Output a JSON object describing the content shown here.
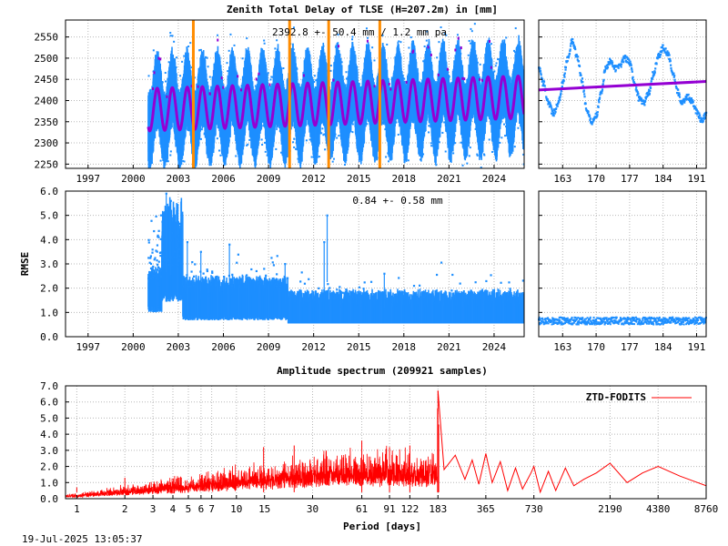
{
  "title": "Zenith Total Delay of TLSE (H=207.2m) in [mm]",
  "timestamp": "19-Jul-2025 13:05:37",
  "colors": {
    "ztd": "#1e8fff",
    "model": "#9400d3",
    "events": "#ff8c00",
    "spectrum": "#ff0000"
  },
  "chart_data": [
    {
      "type": "scatter",
      "panel": "ztd-full",
      "annotation": "2392.8 +-  50.4 mm /  1.2 mm pa",
      "xlim": [
        1995.5,
        2026.0
      ],
      "ylim": [
        2240,
        2590
      ],
      "x_ticks": [
        "1997",
        "2000",
        "2003",
        "2006",
        "2009",
        "2012",
        "2015",
        "2018",
        "2021",
        "2024"
      ],
      "x_tick_values": [
        1997,
        2000,
        2003,
        2006,
        2009,
        2012,
        2015,
        2018,
        2021,
        2024
      ],
      "y_ticks": [
        "2250",
        "2300",
        "2350",
        "2400",
        "2450",
        "2500",
        "2550"
      ],
      "y_tick_values": [
        2250,
        2300,
        2350,
        2400,
        2450,
        2500,
        2550
      ],
      "data_start": 2001.0,
      "data_end": 2026.0,
      "mean": 2392.8,
      "trend_per_year": 1.2,
      "seasonal_amplitude": 50,
      "seasonal_peak_fraction": 0.6,
      "event_lines": [
        2004.0,
        2010.4,
        2013.0,
        2016.4
      ],
      "grid": true
    },
    {
      "type": "scatter",
      "panel": "ztd-recent",
      "xlim": [
        158,
        193
      ],
      "ylim": [
        2240,
        2590
      ],
      "x_ticks": [
        "163",
        "170",
        "177",
        "184",
        "191"
      ],
      "x_tick_values": [
        163,
        170,
        177,
        184,
        191
      ],
      "series": [
        {
          "name": "ZTD",
          "x": [
            158,
            159,
            160,
            161,
            162,
            163,
            164,
            165,
            166,
            167,
            168,
            169,
            170,
            171,
            172,
            173,
            174,
            175,
            176,
            177,
            178,
            179,
            180,
            181,
            182,
            183,
            184,
            185,
            186,
            187,
            188,
            189,
            190,
            191,
            192,
            193
          ],
          "y": [
            2475,
            2440,
            2395,
            2370,
            2390,
            2440,
            2500,
            2540,
            2505,
            2450,
            2380,
            2350,
            2365,
            2420,
            2475,
            2495,
            2475,
            2485,
            2500,
            2490,
            2440,
            2405,
            2395,
            2420,
            2465,
            2505,
            2525,
            2510,
            2465,
            2420,
            2395,
            2410,
            2400,
            2375,
            2355,
            2365
          ]
        },
        {
          "name": "model",
          "x": [
            158,
            193
          ],
          "y": [
            2425,
            2445
          ]
        }
      ],
      "grid": true
    },
    {
      "type": "scatter",
      "panel": "rmse-full",
      "annotation": "0.84 +-  0.58 mm",
      "ylabel": "RMSE",
      "xlim": [
        1995.5,
        2026.0
      ],
      "ylim": [
        0.0,
        6.0
      ],
      "x_ticks": [
        "1997",
        "2000",
        "2003",
        "2006",
        "2009",
        "2012",
        "2015",
        "2018",
        "2021",
        "2024"
      ],
      "x_tick_values": [
        1997,
        2000,
        2003,
        2006,
        2009,
        2012,
        2015,
        2018,
        2021,
        2024
      ],
      "y_ticks": [
        "0.0",
        "1.0",
        "2.0",
        "3.0",
        "4.0",
        "5.0",
        "6.0"
      ],
      "y_tick_values": [
        0,
        1,
        2,
        3,
        4,
        5,
        6
      ],
      "levels": [
        {
          "from": 2001.0,
          "to": 2001.9,
          "base": 1.6
        },
        {
          "from": 2001.9,
          "to": 2003.3,
          "base": 2.1
        },
        {
          "from": 2003.3,
          "to": 2010.3,
          "base": 1.25
        },
        {
          "from": 2010.3,
          "to": 2026.0,
          "base": 0.72
        }
      ],
      "spikes": [
        {
          "x": 2002.2,
          "y": 5.9
        },
        {
          "x": 2002.5,
          "y": 5.6
        },
        {
          "x": 2002.9,
          "y": 4.4
        },
        {
          "x": 2003.6,
          "y": 3.9
        },
        {
          "x": 2004.5,
          "y": 3.5
        },
        {
          "x": 2006.4,
          "y": 3.8
        },
        {
          "x": 2010.1,
          "y": 3.0
        },
        {
          "x": 2012.9,
          "y": 5.0
        },
        {
          "x": 2012.7,
          "y": 3.9
        },
        {
          "x": 2016.7,
          "y": 2.6
        }
      ],
      "grid": true
    },
    {
      "type": "scatter",
      "panel": "rmse-recent",
      "xlim": [
        158,
        193
      ],
      "ylim": [
        0.0,
        6.0
      ],
      "x_ticks": [
        "163",
        "170",
        "177",
        "184",
        "191"
      ],
      "x_tick_values": [
        163,
        170,
        177,
        184,
        191
      ],
      "level": 0.62,
      "grid": true
    },
    {
      "type": "line",
      "panel": "spectrum",
      "title": "Amplitude spectrum (209921 samples)",
      "xlabel": "Period [days]",
      "xscale": "log",
      "xlim": [
        0.85,
        8760
      ],
      "ylim": [
        0.0,
        7.0
      ],
      "x_ticks": [
        "1",
        "2",
        "3",
        "4",
        "5",
        "6",
        "7",
        "10",
        "15",
        "30",
        "61",
        "91",
        "122",
        "183",
        "365",
        "730",
        "2190",
        "4380",
        "8760"
      ],
      "x_tick_values": [
        1,
        2,
        3,
        4,
        5,
        6,
        7,
        10,
        15,
        30,
        61,
        91,
        122,
        183,
        365,
        730,
        2190,
        4380,
        8760
      ],
      "y_ticks": [
        "0.0",
        "1.0",
        "2.0",
        "3.0",
        "4.0",
        "5.0",
        "6.0",
        "7.0"
      ],
      "y_tick_values": [
        0,
        1,
        2,
        3,
        4,
        5,
        6,
        7
      ],
      "legend": "top-right",
      "series": [
        {
          "name": "ZTD-FODITS",
          "x": [
            183,
            200,
            235,
            270,
            300,
            330,
            365,
            400,
            450,
            500,
            560,
            620,
            700,
            730,
            800,
            900,
            1000,
            1150,
            1300,
            1500,
            1800,
            2190,
            2800,
            3500,
            4380,
            6000,
            8760
          ],
          "y": [
            6.7,
            1.8,
            2.7,
            1.2,
            2.4,
            0.9,
            2.8,
            1.0,
            2.3,
            0.5,
            1.9,
            0.6,
            1.6,
            2.0,
            0.4,
            1.7,
            0.5,
            1.9,
            0.8,
            1.2,
            1.6,
            2.2,
            1.0,
            1.6,
            2.0,
            1.4,
            0.8
          ]
        }
      ],
      "peaks": [
        {
          "x": 183,
          "y": 6.7
        },
        {
          "x": 182,
          "y": 5.6
        },
        {
          "x": 185,
          "y": 4.6
        },
        {
          "x": 14.8,
          "y": 3.2
        },
        {
          "x": 23,
          "y": 3.3
        },
        {
          "x": 61,
          "y": 3.6
        },
        {
          "x": 91,
          "y": 3.2
        },
        {
          "x": 122,
          "y": 3.3
        },
        {
          "x": 2.0,
          "y": 1.3
        },
        {
          "x": 1.0,
          "y": 0.7
        }
      ],
      "grid": true
    }
  ]
}
